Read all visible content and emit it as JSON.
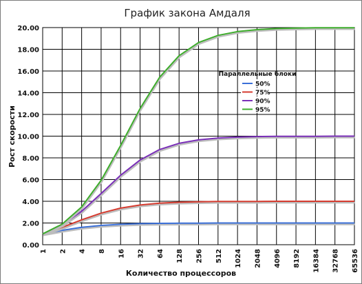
{
  "chart_data": {
    "type": "line",
    "title": "График закона Амдаля",
    "xlabel": "Количество процессоров",
    "ylabel": "Рост скорости",
    "categories": [
      "1",
      "2",
      "4",
      "8",
      "16",
      "32",
      "64",
      "128",
      "256",
      "512",
      "1024",
      "2048",
      "4096",
      "8192",
      "16384",
      "32768",
      "65536"
    ],
    "ylim": [
      0,
      20
    ],
    "yticks": [
      "0.00",
      "2.00",
      "4.00",
      "6.00",
      "8.00",
      "10.00",
      "12.00",
      "14.00",
      "16.00",
      "18.00",
      "20.00"
    ],
    "grid": true,
    "legend": {
      "title": "Параллельные блоки",
      "placement": "right"
    },
    "series": [
      {
        "name": "50%",
        "color": "#3a6fd8",
        "values": [
          1.0,
          1.33,
          1.6,
          1.78,
          1.88,
          1.94,
          1.97,
          1.98,
          1.99,
          2.0,
          2.0,
          2.0,
          2.0,
          2.0,
          2.0,
          2.0,
          2.0
        ]
      },
      {
        "name": "75%",
        "color": "#d63b2f",
        "values": [
          1.0,
          1.6,
          2.29,
          2.91,
          3.37,
          3.66,
          3.82,
          3.91,
          3.95,
          3.98,
          3.99,
          3.99,
          4.0,
          4.0,
          4.0,
          4.0,
          4.0
        ]
      },
      {
        "name": "90%",
        "color": "#7a2fb8",
        "values": [
          1.0,
          1.82,
          3.08,
          4.71,
          6.4,
          7.8,
          8.77,
          9.34,
          9.66,
          9.83,
          9.91,
          9.96,
          9.98,
          9.99,
          9.99,
          10.0,
          10.0
        ]
      },
      {
        "name": "95%",
        "color": "#3dad2b",
        "values": [
          1.0,
          1.9,
          3.48,
          5.93,
          9.14,
          12.55,
          15.42,
          17.41,
          18.62,
          19.28,
          19.63,
          19.81,
          19.91,
          19.95,
          19.98,
          19.99,
          19.99
        ]
      }
    ]
  }
}
